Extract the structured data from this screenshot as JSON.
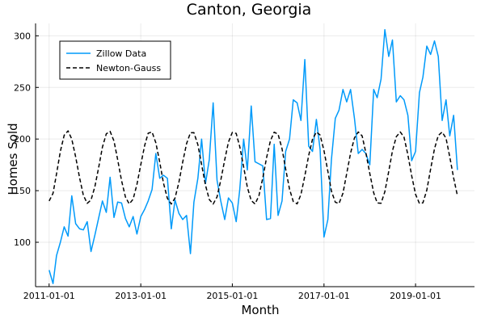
{
  "chart_data": {
    "type": "line",
    "title": "Canton, Georgia",
    "xlabel": "Month",
    "ylabel": "Homes Sold",
    "x_start": "2011-01-01",
    "x_interval": "1 month",
    "xlim": [
      "2010-09-15",
      "2020-04-15"
    ],
    "ylim": [
      57,
      312
    ],
    "xticks": [
      "2011-01-01",
      "2013-01-01",
      "2015-01-01",
      "2017-01-01",
      "2019-01-01"
    ],
    "yticks": [
      100,
      150,
      200,
      250,
      300
    ],
    "grid": true,
    "legend_position": "top-left",
    "series": [
      {
        "name": "Zillow Data",
        "color": "#009AFA",
        "style": "solid",
        "values": [
          73,
          60,
          87,
          100,
          115,
          106,
          145,
          118,
          113,
          112,
          120,
          91,
          107,
          124,
          140,
          129,
          163,
          124,
          139,
          138,
          123,
          115,
          125,
          108,
          125,
          132,
          140,
          151,
          186,
          162,
          165,
          162,
          113,
          141,
          128,
          122,
          126,
          89,
          139,
          162,
          200,
          157,
          180,
          235,
          160,
          140,
          122,
          143,
          138,
          120,
          151,
          200,
          170,
          232,
          178,
          176,
          174,
          122,
          123,
          195,
          126,
          140,
          188,
          200,
          238,
          235,
          218,
          277,
          193,
          188,
          219,
          190,
          105,
          122,
          180,
          220,
          228,
          248,
          236,
          248,
          220,
          186,
          190,
          186,
          175,
          248,
          240,
          258,
          306,
          280,
          296,
          236,
          242,
          238,
          223,
          179,
          188,
          245,
          260,
          290,
          282,
          295,
          280,
          218,
          238,
          203,
          223,
          170
        ]
      },
      {
        "name": "Newton-Gauss",
        "color": "#000000",
        "style": "dashed",
        "values": [
          140.0,
          147.4,
          166.1,
          188.2,
          203.7,
          207.9,
          199.9,
          182.7,
          162.3,
          145.6,
          137.7,
          140.9,
          154.0,
          173.0,
          192.2,
          205.1,
          207.4,
          198.1,
          179.9,
          159.6,
          143.8,
          137.1,
          141.8,
          156.0,
          175.3,
          193.9,
          205.6,
          206.9,
          196.3,
          177.6,
          157.4,
          142.5,
          137.0,
          142.8,
          158.0,
          177.6,
          195.5,
          206.1,
          206.2,
          194.5,
          175.3,
          155.3,
          141.4,
          137.0,
          143.9,
          160.1,
          179.8,
          197.0,
          206.4,
          205.5,
          192.6,
          173.1,
          153.3,
          140.4,
          137.1,
          145.0,
          162.2,
          182.0,
          198.5,
          206.6,
          204.7,
          190.7,
          170.9,
          151.4,
          139.5,
          137.2,
          146.3,
          164.3,
          184.2,
          199.8,
          206.8,
          203.9,
          188.8,
          168.8,
          149.6,
          138.8,
          137.5,
          147.6,
          166.5,
          186.4,
          201.1,
          206.9,
          203.0,
          186.8,
          166.6,
          148.0,
          138.1,
          137.8,
          149.0,
          168.6,
          188.5,
          202.3,
          206.9,
          201.9,
          184.7,
          164.5,
          146.4,
          137.6,
          138.2,
          150.5,
          170.8,
          190.5,
          203.4,
          206.8,
          200.8,
          182.7,
          162.4,
          145.0
        ]
      }
    ]
  }
}
